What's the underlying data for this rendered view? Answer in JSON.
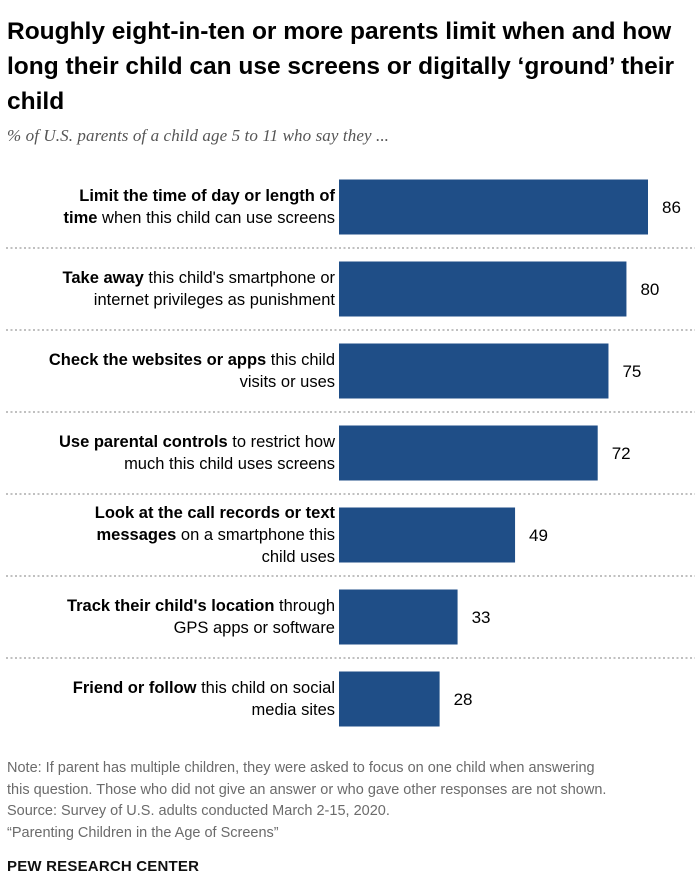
{
  "chart_data": {
    "type": "bar",
    "orientation": "horizontal",
    "title": "Roughly eight-in-ten or more parents limit when and how long their child can use screens or digitally ‘ground’ their child",
    "subtitle": "% of U.S. parents of a child age 5 to 11 who say they ...",
    "bar_color": "#1f4e87",
    "categories": [
      {
        "bold": "Limit the time of day or length of time",
        "rest": " when this child can use screens"
      },
      {
        "bold": "Take away",
        "rest": " this child's smartphone or internet privileges as punishment"
      },
      {
        "bold": "Check the websites or apps",
        "rest": " this child visits or uses"
      },
      {
        "bold": "Use parental controls",
        "rest": " to restrict how much this child uses screens"
      },
      {
        "bold": "Look at the call records or text messages",
        "rest": " on a smartphone this child uses"
      },
      {
        "bold": "Track their child's location",
        "rest": " through GPS apps or software"
      },
      {
        "bold": "Friend or follow",
        "rest": " this child on social media sites"
      }
    ],
    "values": [
      86,
      80,
      75,
      72,
      49,
      33,
      28
    ],
    "xlim": [
      0,
      100
    ]
  },
  "notes": [
    "Note: If parent has multiple children, they were asked to focus on one child when answering",
    "this question. Those who did not give an answer or who gave other responses are not shown.",
    "Source: Survey of U.S. adults conducted March 2-15, 2020.",
    "“Parenting Children in the Age of Screens”"
  ],
  "brand": "PEW RESEARCH CENTER"
}
